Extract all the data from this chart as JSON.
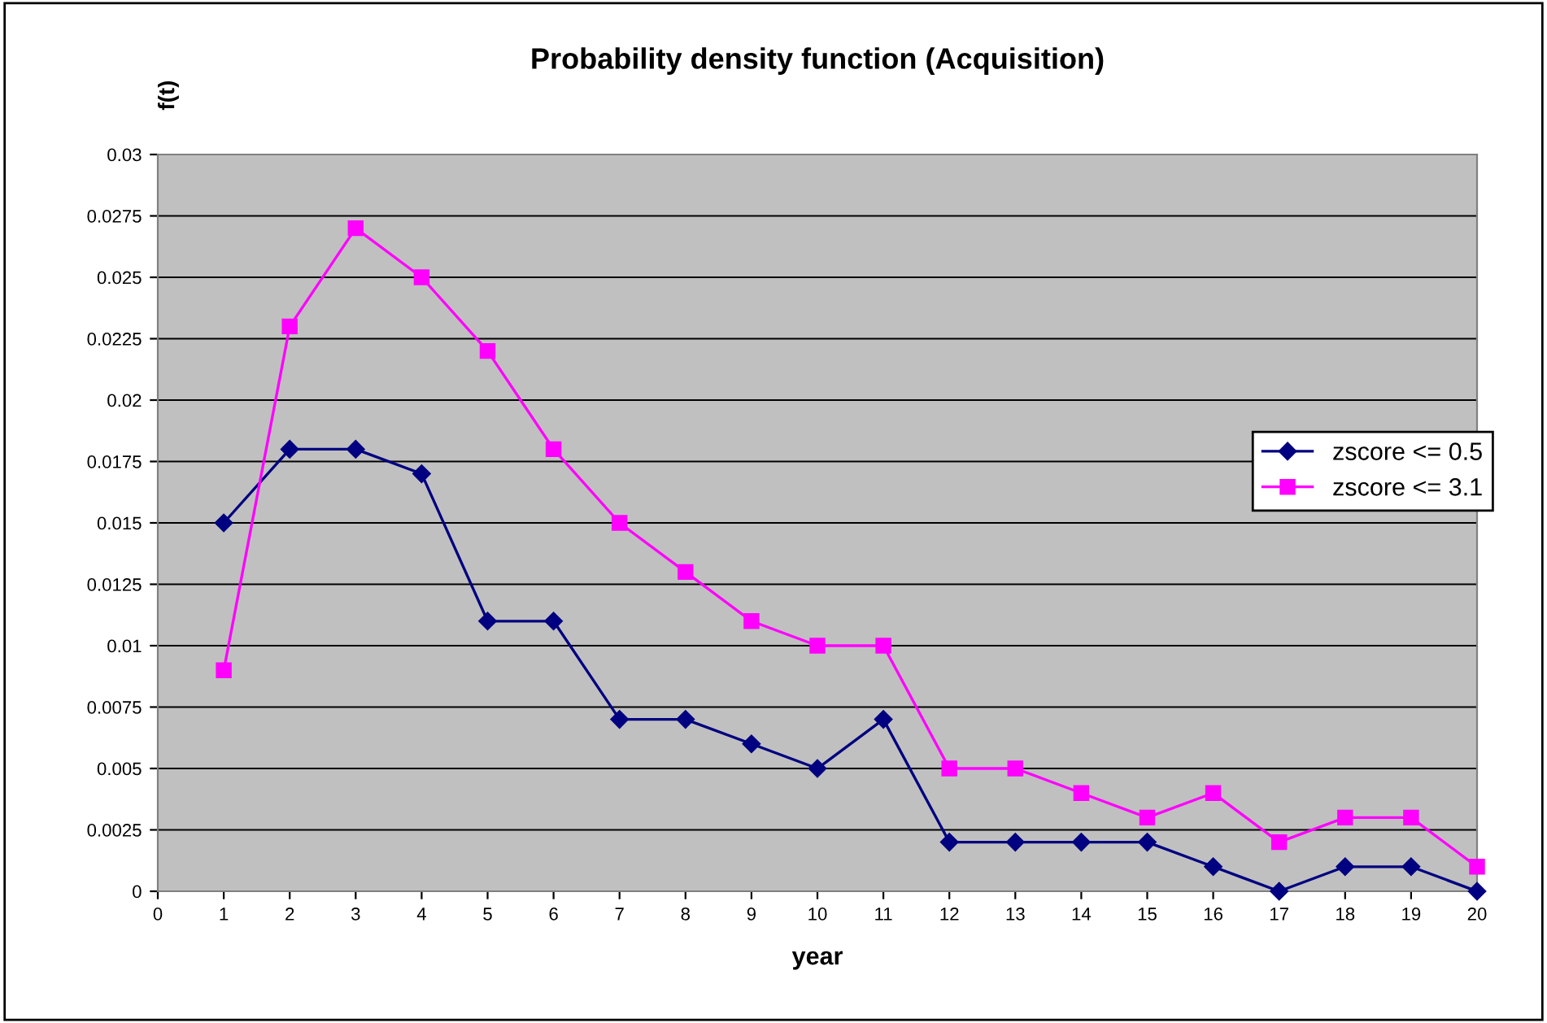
{
  "chart_data": {
    "type": "line",
    "title": "Probability density function (Acquisition)",
    "xlabel": "year",
    "ylabel": "f(t)",
    "x": [
      1,
      2,
      3,
      4,
      5,
      6,
      7,
      8,
      9,
      10,
      11,
      12,
      13,
      14,
      15,
      16,
      17,
      18,
      19,
      20
    ],
    "series": [
      {
        "name": "zscore <= 0.5",
        "color": "#000080",
        "marker": "diamond",
        "values": [
          0.015,
          0.018,
          0.018,
          0.017,
          0.011,
          0.011,
          0.007,
          0.007,
          0.006,
          0.005,
          0.007,
          0.002,
          0.002,
          0.002,
          0.002,
          0.001,
          0,
          0.001,
          0.001,
          0
        ]
      },
      {
        "name": "zscore <= 3.1",
        "color": "#ff00ff",
        "marker": "square",
        "values": [
          0.009,
          0.023,
          0.027,
          0.025,
          0.022,
          0.018,
          0.015,
          0.013,
          0.011,
          0.01,
          0.01,
          0.005,
          0.005,
          0.004,
          0.003,
          0.004,
          0.002,
          0.003,
          0.003,
          0.001
        ]
      }
    ],
    "xlim": [
      0,
      20
    ],
    "xticks": [
      0,
      1,
      2,
      3,
      4,
      5,
      6,
      7,
      8,
      9,
      10,
      11,
      12,
      13,
      14,
      15,
      16,
      17,
      18,
      19,
      20
    ],
    "ylim": [
      0,
      0.03
    ],
    "yticks": [
      0,
      0.0025,
      0.005,
      0.0075,
      0.01,
      0.0125,
      0.015,
      0.0175,
      0.02,
      0.0225,
      0.025,
      0.0275,
      0.03
    ],
    "grid": "y",
    "legend": "right"
  }
}
